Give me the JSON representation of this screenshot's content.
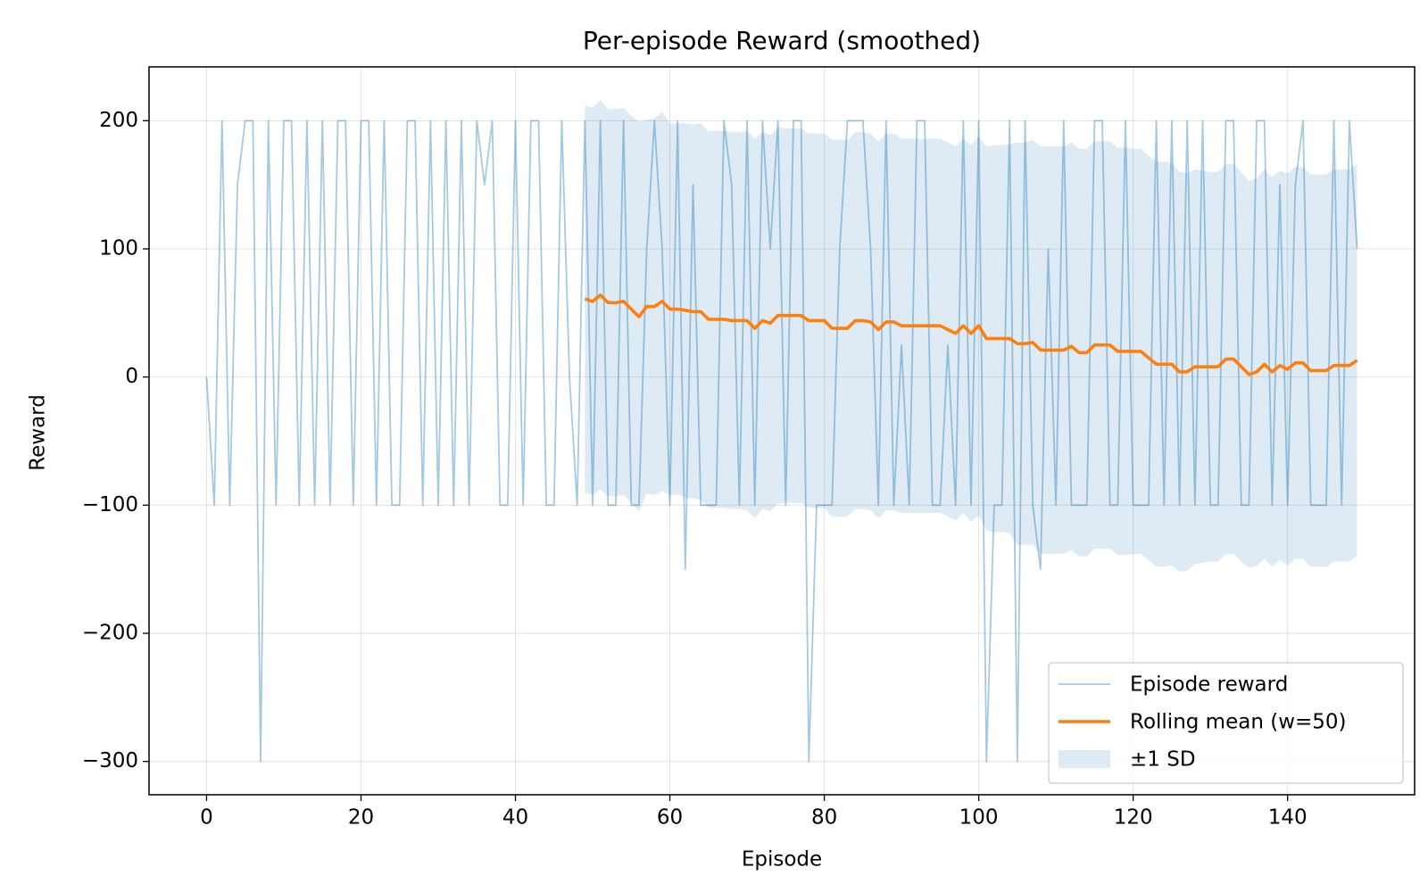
{
  "chart_data": {
    "type": "line",
    "title": "Per-episode Reward (smoothed)",
    "x_label": "Episode",
    "y_label": "Reward",
    "xlim": [
      -7.45,
      156.45
    ],
    "ylim": [
      -326,
      242
    ],
    "xticks": [
      0,
      20,
      40,
      60,
      80,
      100,
      120,
      140
    ],
    "yticks": [
      {
        "value": -300,
        "label": "−300"
      },
      {
        "value": -200,
        "label": "−200"
      },
      {
        "value": -100,
        "label": "−100"
      },
      0,
      100,
      200
    ],
    "grid": true,
    "legend_position": "lower right",
    "x": [
      0,
      1,
      2,
      3,
      4,
      5,
      6,
      7,
      8,
      9,
      10,
      11,
      12,
      13,
      14,
      15,
      16,
      17,
      18,
      19,
      20,
      21,
      22,
      23,
      24,
      25,
      26,
      27,
      28,
      29,
      30,
      31,
      32,
      33,
      34,
      35,
      36,
      37,
      38,
      39,
      40,
      41,
      42,
      43,
      44,
      45,
      46,
      47,
      48,
      49,
      50,
      51,
      52,
      53,
      54,
      55,
      56,
      57,
      58,
      59,
      60,
      61,
      62,
      63,
      64,
      65,
      66,
      67,
      68,
      69,
      70,
      71,
      72,
      73,
      74,
      75,
      76,
      77,
      78,
      79,
      80,
      81,
      82,
      83,
      84,
      85,
      86,
      87,
      88,
      89,
      90,
      91,
      92,
      93,
      94,
      95,
      96,
      97,
      98,
      99,
      100,
      101,
      102,
      103,
      104,
      105,
      106,
      107,
      108,
      109,
      110,
      111,
      112,
      113,
      114,
      115,
      116,
      117,
      118,
      119,
      120,
      121,
      122,
      123,
      124,
      125,
      126,
      127,
      128,
      129,
      130,
      131,
      132,
      133,
      134,
      135,
      136,
      137,
      138,
      139,
      140,
      141,
      142,
      143,
      144,
      145,
      146,
      147,
      148,
      149
    ],
    "series": [
      {
        "name": "Episode reward",
        "style": "line",
        "color": "#1f77b4",
        "alpha": 0.4,
        "values": [
          0,
          -100,
          200,
          -100,
          150,
          200,
          200,
          -300,
          200,
          -100,
          200,
          200,
          -100,
          200,
          -100,
          200,
          -100,
          200,
          200,
          -100,
          200,
          200,
          -100,
          200,
          -100,
          -100,
          200,
          200,
          -100,
          200,
          -100,
          200,
          -100,
          200,
          -100,
          200,
          150,
          200,
          -100,
          -100,
          200,
          -100,
          200,
          200,
          -100,
          -100,
          200,
          0,
          -100,
          200,
          -100,
          200,
          -100,
          -100,
          200,
          -100,
          -100,
          100,
          200,
          100,
          -100,
          200,
          -150,
          150,
          -100,
          -100,
          -100,
          200,
          150,
          -100,
          200,
          -100,
          200,
          100,
          200,
          -100,
          200,
          200,
          -300,
          -100,
          -100,
          -100,
          100,
          200,
          200,
          200,
          100,
          -100,
          200,
          -100,
          25,
          -100,
          200,
          200,
          -100,
          -100,
          25,
          -100,
          200,
          -100,
          200,
          -300,
          -100,
          -100,
          200,
          -300,
          200,
          -100,
          -150,
          100,
          -100,
          200,
          -100,
          -100,
          -100,
          200,
          200,
          -100,
          -100,
          200,
          -100,
          -100,
          -100,
          200,
          -100,
          200,
          -100,
          200,
          -100,
          200,
          -100,
          -100,
          200,
          200,
          -100,
          -100,
          200,
          200,
          -100,
          150,
          -100,
          150,
          200,
          -100,
          -100,
          -100,
          200,
          -100,
          200,
          100
        ]
      },
      {
        "name": "Rolling mean (w=50)",
        "style": "line",
        "color": "#ff7f0e",
        "alpha": 1,
        "values": [
          null,
          null,
          null,
          null,
          null,
          null,
          null,
          null,
          null,
          null,
          null,
          null,
          null,
          null,
          null,
          null,
          null,
          null,
          null,
          null,
          null,
          null,
          null,
          null,
          null,
          null,
          null,
          null,
          null,
          null,
          null,
          null,
          null,
          null,
          null,
          null,
          null,
          null,
          null,
          null,
          null,
          null,
          null,
          null,
          null,
          null,
          null,
          null,
          null,
          61,
          59,
          64,
          58,
          58,
          59,
          53,
          47,
          55,
          55,
          59,
          53,
          53,
          52,
          51,
          51,
          45,
          45,
          45,
          44,
          44,
          44,
          38,
          44,
          42,
          48,
          48,
          48,
          48,
          44,
          44,
          44,
          38,
          38,
          38,
          44,
          44,
          43,
          37,
          43,
          43,
          40,
          40,
          40,
          40,
          40,
          40,
          37,
          34,
          40,
          34,
          40,
          30,
          30,
          30,
          30,
          26,
          26,
          27,
          21,
          21,
          21,
          21,
          24,
          19,
          19,
          25,
          25,
          25,
          20,
          20,
          20,
          20,
          15,
          10,
          10,
          10,
          4,
          4,
          8,
          8,
          8,
          8,
          14,
          14,
          8,
          2,
          4,
          10,
          4,
          9,
          6,
          11,
          11,
          5,
          5,
          5,
          9,
          9,
          9,
          13
        ]
      },
      {
        "name": "±1 SD",
        "style": "band",
        "color": "#1f77b4",
        "alpha": 0.15,
        "values": [
          null,
          null,
          null,
          null,
          null,
          null,
          null,
          null,
          null,
          null,
          null,
          null,
          null,
          null,
          null,
          null,
          null,
          null,
          null,
          null,
          null,
          null,
          null,
          null,
          null,
          null,
          null,
          null,
          null,
          null,
          null,
          null,
          null,
          null,
          null,
          null,
          null,
          null,
          null,
          null,
          null,
          null,
          null,
          null,
          null,
          null,
          null,
          null,
          null,
          151,
          151,
          152,
          151,
          151,
          151,
          151,
          152,
          146,
          147,
          148,
          145,
          145,
          146,
          146,
          147,
          147,
          147,
          147,
          147,
          147,
          148,
          148,
          147,
          147,
          147,
          146,
          146,
          146,
          146,
          146,
          146,
          147,
          147,
          147,
          147,
          147,
          147,
          147,
          147,
          147,
          146,
          146,
          146,
          146,
          146,
          146,
          146,
          146,
          146,
          147,
          148,
          150,
          151,
          151,
          152,
          157,
          157,
          158,
          159,
          159,
          159,
          159,
          159,
          159,
          159,
          159,
          159,
          159,
          159,
          159,
          158,
          158,
          158,
          158,
          158,
          157,
          156,
          155,
          154,
          153,
          152,
          152,
          152,
          152,
          152,
          151,
          151,
          152,
          152,
          152,
          153,
          153,
          153,
          153,
          153,
          153,
          153,
          153,
          153,
          153
        ]
      }
    ]
  }
}
